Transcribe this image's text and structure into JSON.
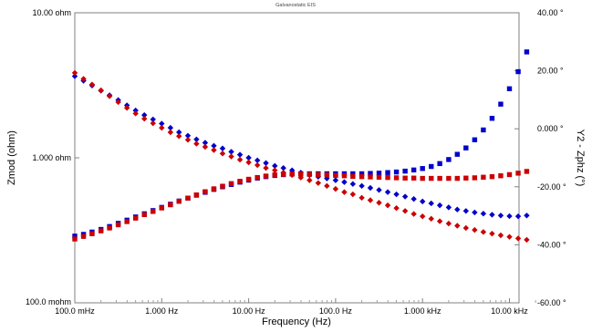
{
  "chart_data": {
    "type": "scatter",
    "title": "Galvanostatic EIS",
    "xlabel": "Frequency (Hz)",
    "ylabel_left": "Zmod (ohm)",
    "ylabel_right": "Y2 - Zphz (°)",
    "x_scale": "log",
    "x_range": [
      0.1,
      20000
    ],
    "y_left_scale": "log",
    "y_left_range": [
      0.1,
      10
    ],
    "y_right_range": [
      -60,
      40
    ],
    "x_ticks": [
      {
        "value": 0.1,
        "label": "100.0 mHz"
      },
      {
        "value": 1,
        "label": "1.000 Hz"
      },
      {
        "value": 10,
        "label": "10.00 Hz"
      },
      {
        "value": 100,
        "label": "100.0 Hz"
      },
      {
        "value": 1000,
        "label": "1.000 kHz"
      },
      {
        "value": 10000,
        "label": "10.00 kHz"
      }
    ],
    "y_left_ticks": [
      {
        "value": 10,
        "label": "10.00 ohm"
      },
      {
        "value": 1,
        "label": "1.000 ohm"
      },
      {
        "value": 0.1,
        "label": "100.0 mohm"
      }
    ],
    "y_right_ticks": [
      {
        "value": 40,
        "label": "40.00 °"
      },
      {
        "value": 20,
        "label": "20.00 °"
      },
      {
        "value": 0,
        "label": "0.000 °"
      },
      {
        "value": -20,
        "label": "-20.00 °"
      },
      {
        "value": -40,
        "label": "-40.00 °"
      },
      {
        "value": -60,
        "label": "-60.00 °"
      }
    ],
    "grid": false,
    "series": [
      {
        "color": "#0000cc",
        "marker": "diamond",
        "axis": "left",
        "description": "Zmod",
        "points": [
          [
            0.1,
            3.65
          ],
          [
            0.126,
            3.4
          ],
          [
            0.158,
            3.15
          ],
          [
            0.2,
            2.9
          ],
          [
            0.251,
            2.7
          ],
          [
            0.316,
            2.5
          ],
          [
            0.398,
            2.3
          ],
          [
            0.501,
            2.12
          ],
          [
            0.631,
            1.97
          ],
          [
            0.794,
            1.84
          ],
          [
            1,
            1.72
          ],
          [
            1.26,
            1.61
          ],
          [
            1.58,
            1.5
          ],
          [
            2,
            1.42
          ],
          [
            2.51,
            1.34
          ],
          [
            3.16,
            1.27
          ],
          [
            3.98,
            1.21
          ],
          [
            5.01,
            1.16
          ],
          [
            6.31,
            1.1
          ],
          [
            7.94,
            1.05
          ],
          [
            10,
            1.0
          ],
          [
            12.6,
            0.96
          ],
          [
            15.8,
            0.92
          ],
          [
            20,
            0.88
          ],
          [
            25.1,
            0.85
          ],
          [
            31.6,
            0.82
          ],
          [
            39.8,
            0.79
          ],
          [
            50.1,
            0.76
          ],
          [
            63.1,
            0.74
          ],
          [
            79.4,
            0.72
          ],
          [
            100,
            0.7
          ],
          [
            126,
            0.68
          ],
          [
            158,
            0.66
          ],
          [
            200,
            0.64
          ],
          [
            251,
            0.62
          ],
          [
            316,
            0.6
          ],
          [
            398,
            0.58
          ],
          [
            501,
            0.56
          ],
          [
            631,
            0.54
          ],
          [
            794,
            0.52
          ],
          [
            1000,
            0.5
          ],
          [
            1260,
            0.485
          ],
          [
            1580,
            0.47
          ],
          [
            2000,
            0.455
          ],
          [
            2510,
            0.44
          ],
          [
            3160,
            0.43
          ],
          [
            3980,
            0.42
          ],
          [
            5010,
            0.412
          ],
          [
            6310,
            0.405
          ],
          [
            7940,
            0.4
          ],
          [
            10000,
            0.396
          ],
          [
            12600,
            0.395
          ],
          [
            15800,
            0.4
          ]
        ]
      },
      {
        "color": "#cc0000",
        "marker": "diamond",
        "axis": "left",
        "description": "Zmod",
        "points": [
          [
            0.1,
            3.85
          ],
          [
            0.126,
            3.5
          ],
          [
            0.158,
            3.2
          ],
          [
            0.2,
            2.92
          ],
          [
            0.251,
            2.66
          ],
          [
            0.316,
            2.42
          ],
          [
            0.398,
            2.21
          ],
          [
            0.501,
            2.02
          ],
          [
            0.631,
            1.86
          ],
          [
            0.794,
            1.73
          ],
          [
            1,
            1.61
          ],
          [
            1.26,
            1.5
          ],
          [
            1.58,
            1.41
          ],
          [
            2,
            1.33
          ],
          [
            2.51,
            1.25
          ],
          [
            3.16,
            1.19
          ],
          [
            3.98,
            1.13
          ],
          [
            5.01,
            1.07
          ],
          [
            6.31,
            1.02
          ],
          [
            7.94,
            0.97
          ],
          [
            10,
            0.93
          ],
          [
            12.6,
            0.89
          ],
          [
            15.8,
            0.85
          ],
          [
            20,
            0.82
          ],
          [
            25.1,
            0.79
          ],
          [
            31.6,
            0.76
          ],
          [
            39.8,
            0.73
          ],
          [
            50.1,
            0.7
          ],
          [
            63.1,
            0.67
          ],
          [
            79.4,
            0.64
          ],
          [
            100,
            0.61
          ],
          [
            126,
            0.58
          ],
          [
            158,
            0.56
          ],
          [
            200,
            0.53
          ],
          [
            251,
            0.51
          ],
          [
            316,
            0.49
          ],
          [
            398,
            0.47
          ],
          [
            501,
            0.45
          ],
          [
            631,
            0.43
          ],
          [
            794,
            0.41
          ],
          [
            1000,
            0.395
          ],
          [
            1260,
            0.38
          ],
          [
            1580,
            0.365
          ],
          [
            2000,
            0.352
          ],
          [
            2510,
            0.34
          ],
          [
            3160,
            0.328
          ],
          [
            3980,
            0.318
          ],
          [
            5010,
            0.308
          ],
          [
            6310,
            0.3
          ],
          [
            7940,
            0.292
          ],
          [
            10000,
            0.285
          ],
          [
            12600,
            0.278
          ],
          [
            15800,
            0.272
          ]
        ]
      },
      {
        "color": "#0000cc",
        "marker": "square",
        "axis": "right",
        "description": "Zphz",
        "points": [
          [
            0.1,
            -37.0
          ],
          [
            0.126,
            -36.4
          ],
          [
            0.158,
            -35.6
          ],
          [
            0.2,
            -34.7
          ],
          [
            0.251,
            -33.7
          ],
          [
            0.316,
            -32.6
          ],
          [
            0.398,
            -31.5
          ],
          [
            0.501,
            -30.4
          ],
          [
            0.631,
            -29.3
          ],
          [
            0.794,
            -28.2
          ],
          [
            1,
            -27.1
          ],
          [
            1.26,
            -26.0
          ],
          [
            1.58,
            -24.9
          ],
          [
            2,
            -23.9
          ],
          [
            2.51,
            -22.9
          ],
          [
            3.16,
            -21.9
          ],
          [
            3.98,
            -20.9
          ],
          [
            5.01,
            -20.0
          ],
          [
            6.31,
            -19.2
          ],
          [
            7.94,
            -18.4
          ],
          [
            10,
            -17.7
          ],
          [
            12.6,
            -17.0
          ],
          [
            15.8,
            -16.5
          ],
          [
            20,
            -16.1
          ],
          [
            25.1,
            -15.8
          ],
          [
            31.6,
            -15.6
          ],
          [
            39.8,
            -15.5
          ],
          [
            50.1,
            -15.5
          ],
          [
            63.1,
            -15.5
          ],
          [
            79.4,
            -15.5
          ],
          [
            100,
            -15.5
          ],
          [
            126,
            -15.5
          ],
          [
            158,
            -15.5
          ],
          [
            200,
            -15.5
          ],
          [
            251,
            -15.4
          ],
          [
            316,
            -15.3
          ],
          [
            398,
            -15.1
          ],
          [
            501,
            -14.9
          ],
          [
            631,
            -14.6
          ],
          [
            794,
            -14.2
          ],
          [
            1000,
            -13.7
          ],
          [
            1260,
            -13.0
          ],
          [
            1580,
            -12.0
          ],
          [
            2000,
            -10.6
          ],
          [
            2510,
            -8.8
          ],
          [
            3160,
            -6.6
          ],
          [
            3980,
            -3.8
          ],
          [
            5010,
            -0.4
          ],
          [
            6310,
            3.6
          ],
          [
            7940,
            8.5
          ],
          [
            10000,
            13.8
          ],
          [
            12600,
            19.7
          ],
          [
            15800,
            26.5
          ]
        ]
      },
      {
        "color": "#cc0000",
        "marker": "square",
        "axis": "right",
        "description": "Zphz",
        "points": [
          [
            0.1,
            -38.0
          ],
          [
            0.126,
            -37.1
          ],
          [
            0.158,
            -36.2
          ],
          [
            0.2,
            -35.2
          ],
          [
            0.251,
            -34.2
          ],
          [
            0.316,
            -33.1
          ],
          [
            0.398,
            -32.0
          ],
          [
            0.501,
            -30.8
          ],
          [
            0.631,
            -29.6
          ],
          [
            0.794,
            -28.5
          ],
          [
            1,
            -27.3
          ],
          [
            1.26,
            -26.2
          ],
          [
            1.58,
            -25.0
          ],
          [
            2,
            -23.9
          ],
          [
            2.51,
            -22.8
          ],
          [
            3.16,
            -21.7
          ],
          [
            3.98,
            -20.7
          ],
          [
            5.01,
            -19.8
          ],
          [
            6.31,
            -18.9
          ],
          [
            7.94,
            -18.1
          ],
          [
            10,
            -17.4
          ],
          [
            12.6,
            -16.8
          ],
          [
            15.8,
            -16.3
          ],
          [
            20,
            -15.9
          ],
          [
            25.1,
            -15.7
          ],
          [
            31.6,
            -15.6
          ],
          [
            39.8,
            -15.6
          ],
          [
            50.1,
            -15.7
          ],
          [
            63.1,
            -15.8
          ],
          [
            79.4,
            -15.9
          ],
          [
            100,
            -16.1
          ],
          [
            126,
            -16.2
          ],
          [
            158,
            -16.4
          ],
          [
            200,
            -16.5
          ],
          [
            251,
            -16.6
          ],
          [
            316,
            -16.7
          ],
          [
            398,
            -16.8
          ],
          [
            501,
            -16.9
          ],
          [
            631,
            -17.0
          ],
          [
            794,
            -17.0
          ],
          [
            1000,
            -17.1
          ],
          [
            1260,
            -17.1
          ],
          [
            1580,
            -17.1
          ],
          [
            2000,
            -17.1
          ],
          [
            2510,
            -17.1
          ],
          [
            3160,
            -17.0
          ],
          [
            3980,
            -16.9
          ],
          [
            5010,
            -16.7
          ],
          [
            6310,
            -16.5
          ],
          [
            7940,
            -16.2
          ],
          [
            10000,
            -15.8
          ],
          [
            12600,
            -15.3
          ],
          [
            15800,
            -14.7
          ]
        ]
      }
    ]
  }
}
